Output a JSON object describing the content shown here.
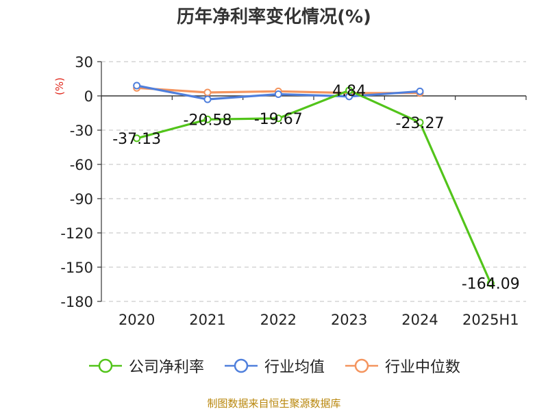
{
  "chart_data": {
    "type": "line",
    "title": "历年净利率变化情况(%)",
    "ylabel": "(%)",
    "xlabel": "",
    "categories": [
      "2020",
      "2021",
      "2022",
      "2023",
      "2024",
      "2025H1"
    ],
    "ylim": [
      -180,
      30
    ],
    "yticks": [
      30,
      0,
      -30,
      -60,
      -90,
      -120,
      -150,
      -180
    ],
    "grid": true,
    "legend_position": "bottom",
    "series": [
      {
        "name": "公司净利率",
        "color": "#52c41a",
        "values": [
          -37.13,
          -20.58,
          -19.67,
          4.84,
          -23.27,
          -164.09
        ],
        "labels": [
          "-37.13",
          "-20.58",
          "-19.67",
          "4.84",
          "-23.27",
          "-164.09"
        ]
      },
      {
        "name": "行业均值",
        "color": "#4f7fdc",
        "values": [
          9.0,
          -3.0,
          1.5,
          -0.5,
          4.0,
          null
        ]
      },
      {
        "name": "行业中位数",
        "color": "#f4945e",
        "values": [
          7.0,
          3.0,
          4.0,
          2.5,
          2.5,
          null
        ]
      }
    ]
  },
  "colors": {
    "axis": "#333333",
    "grid": "#cccccc",
    "ylabel": "#e0261a",
    "source": "#b8860b"
  },
  "source_note": "制图数据来自恒生聚源数据库"
}
